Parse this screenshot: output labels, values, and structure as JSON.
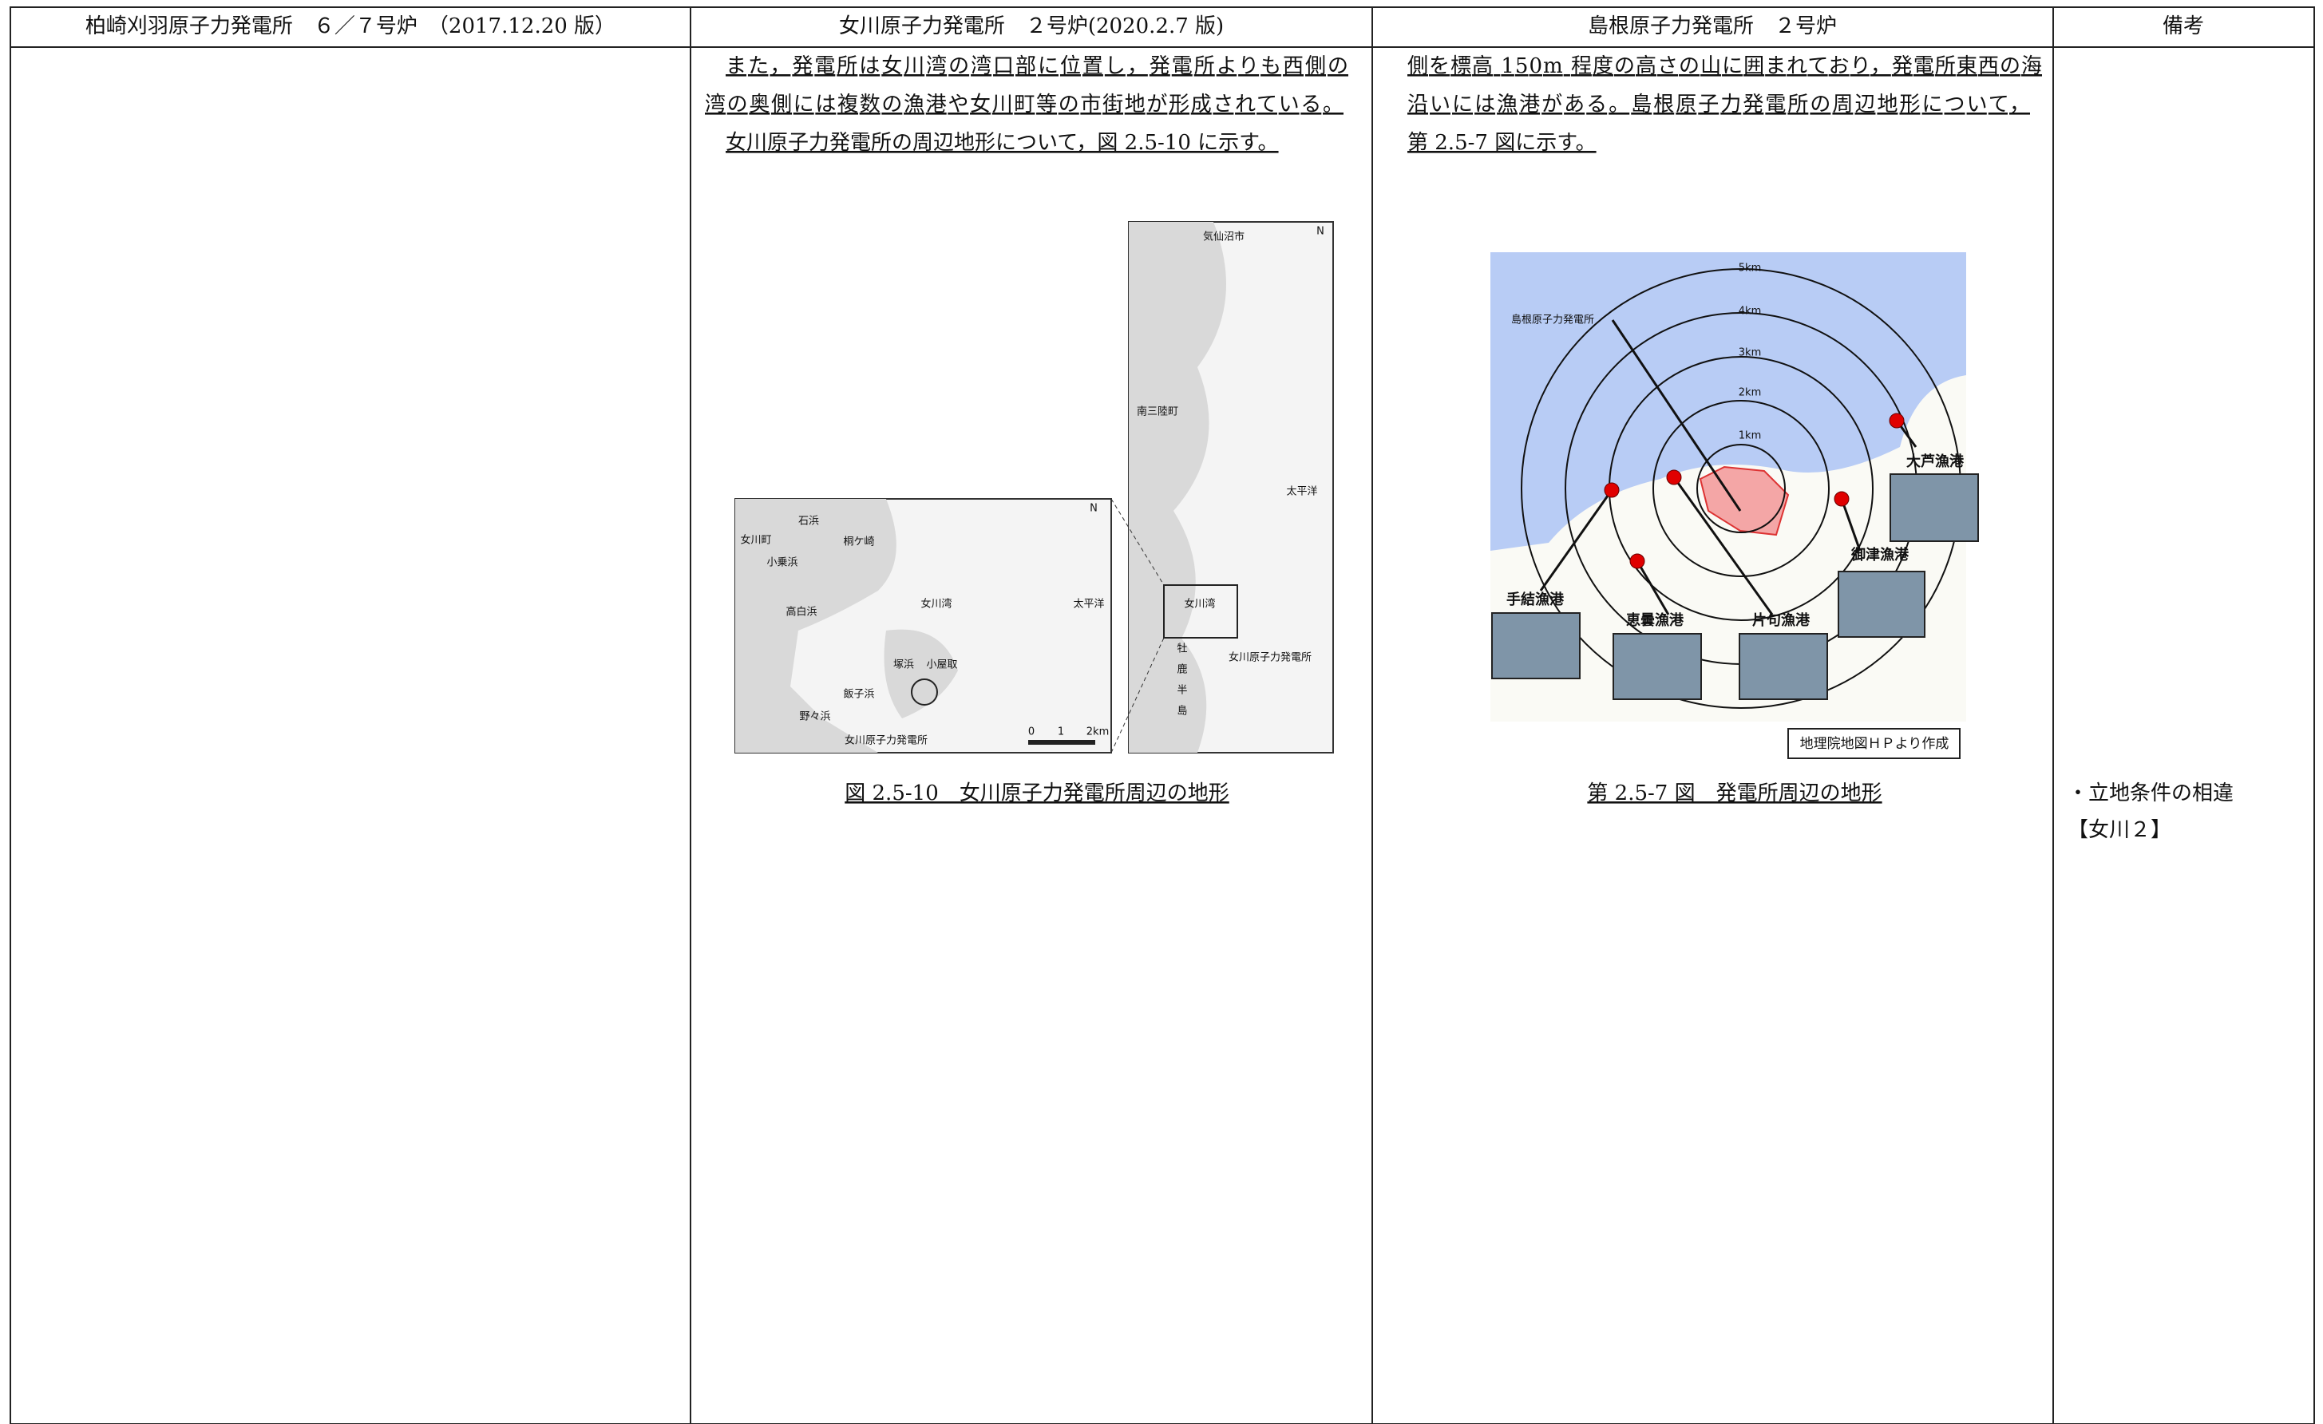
{
  "header": [
    "柏崎刈羽原子力発電所　６／７号炉　（2017.12.20 版）",
    "女川原子力発電所　２号炉(2020.2.7 版)",
    "島根原子力発電所　２号炉",
    "備考"
  ],
  "onagawa": {
    "paragraph_lines": [
      "また，発電所は女川湾の湾口部に位置し，発電所よりも西側の",
      "湾の奥側には複数の漁港や女川町等の市街地が形成されている。",
      "女川原子力発電所の周辺地形について，図 2.5-10 に示す。"
    ],
    "detail_map_labels": [
      "石浜",
      "桐ケ崎",
      "女川町",
      "小乗浜",
      "女川湾",
      "太平洋",
      "高白浜",
      "塚浜",
      "小屋取",
      "飯子浜",
      "野々浜",
      "女川原子力発電所",
      "0",
      "1",
      "2km",
      "N"
    ],
    "overview_map_labels": [
      "気仙沼市",
      "南三陸町",
      "太平洋",
      "女川湾",
      "牡",
      "鹿",
      "半",
      "島",
      "女川原子力発電所",
      "N"
    ],
    "caption": "図 2.5-10　女川原子力発電所周辺の地形"
  },
  "shimane": {
    "paragraph_lines": [
      "側を標高 150m 程度の高さの山に囲まれており，発電所東西の海",
      "沿いには漁港がある。島根原子力発電所の周辺地形について，",
      "第 2.5-7 図に示す。"
    ],
    "ring_labels": [
      "5km",
      "4km",
      "3km",
      "2km",
      "1km"
    ],
    "plant_label": "島根原子力発電所",
    "harbor_labels": [
      "大芦漁港",
      "御津漁港",
      "片句漁港",
      "恵曇漁港",
      "手結漁港"
    ],
    "source_note": "地理院地図ＨＰより作成",
    "caption": "第 2.5-7 図　発電所周辺の地形"
  },
  "remarks": [
    "・立地条件の相違",
    "【女川２】"
  ]
}
